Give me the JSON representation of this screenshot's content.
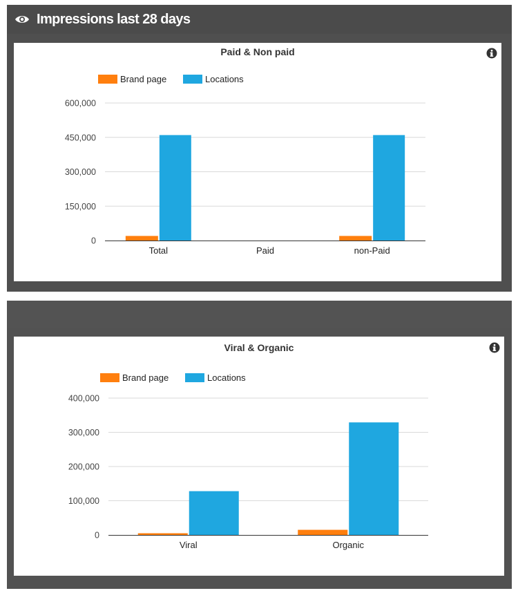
{
  "header": {
    "title": "Impressions last 28 days",
    "icon": "eye-icon"
  },
  "colors": {
    "brand_page": "#ff7f0e",
    "locations": "#1fa7e0",
    "panel_bg": "#4f4f4f"
  },
  "chart_data": [
    {
      "type": "bar",
      "title": "Paid & Non paid",
      "categories": [
        "Total",
        "Paid",
        "non-Paid"
      ],
      "series": [
        {
          "name": "Brand page",
          "values": [
            20000,
            0,
            20000
          ]
        },
        {
          "name": "Locations",
          "values": [
            460000,
            0,
            460000
          ]
        }
      ],
      "ylim": [
        0,
        600000
      ],
      "yticks": [
        0,
        150000,
        300000,
        450000,
        600000
      ],
      "ytick_labels": [
        "0",
        "150,000",
        "300,000",
        "450,000",
        "600,000"
      ],
      "legend": "top-left",
      "grid": true
    },
    {
      "type": "bar",
      "title": "Viral & Organic",
      "categories": [
        "Viral",
        "Organic"
      ],
      "series": [
        {
          "name": "Brand page",
          "values": [
            5000,
            15000
          ]
        },
        {
          "name": "Locations",
          "values": [
            128000,
            329000
          ]
        }
      ],
      "ylim": [
        0,
        400000
      ],
      "yticks": [
        0,
        100000,
        200000,
        300000,
        400000
      ],
      "ytick_labels": [
        "0",
        "100,000",
        "200,000",
        "300,000",
        "400,000"
      ],
      "legend": "top-left",
      "grid": true
    }
  ]
}
